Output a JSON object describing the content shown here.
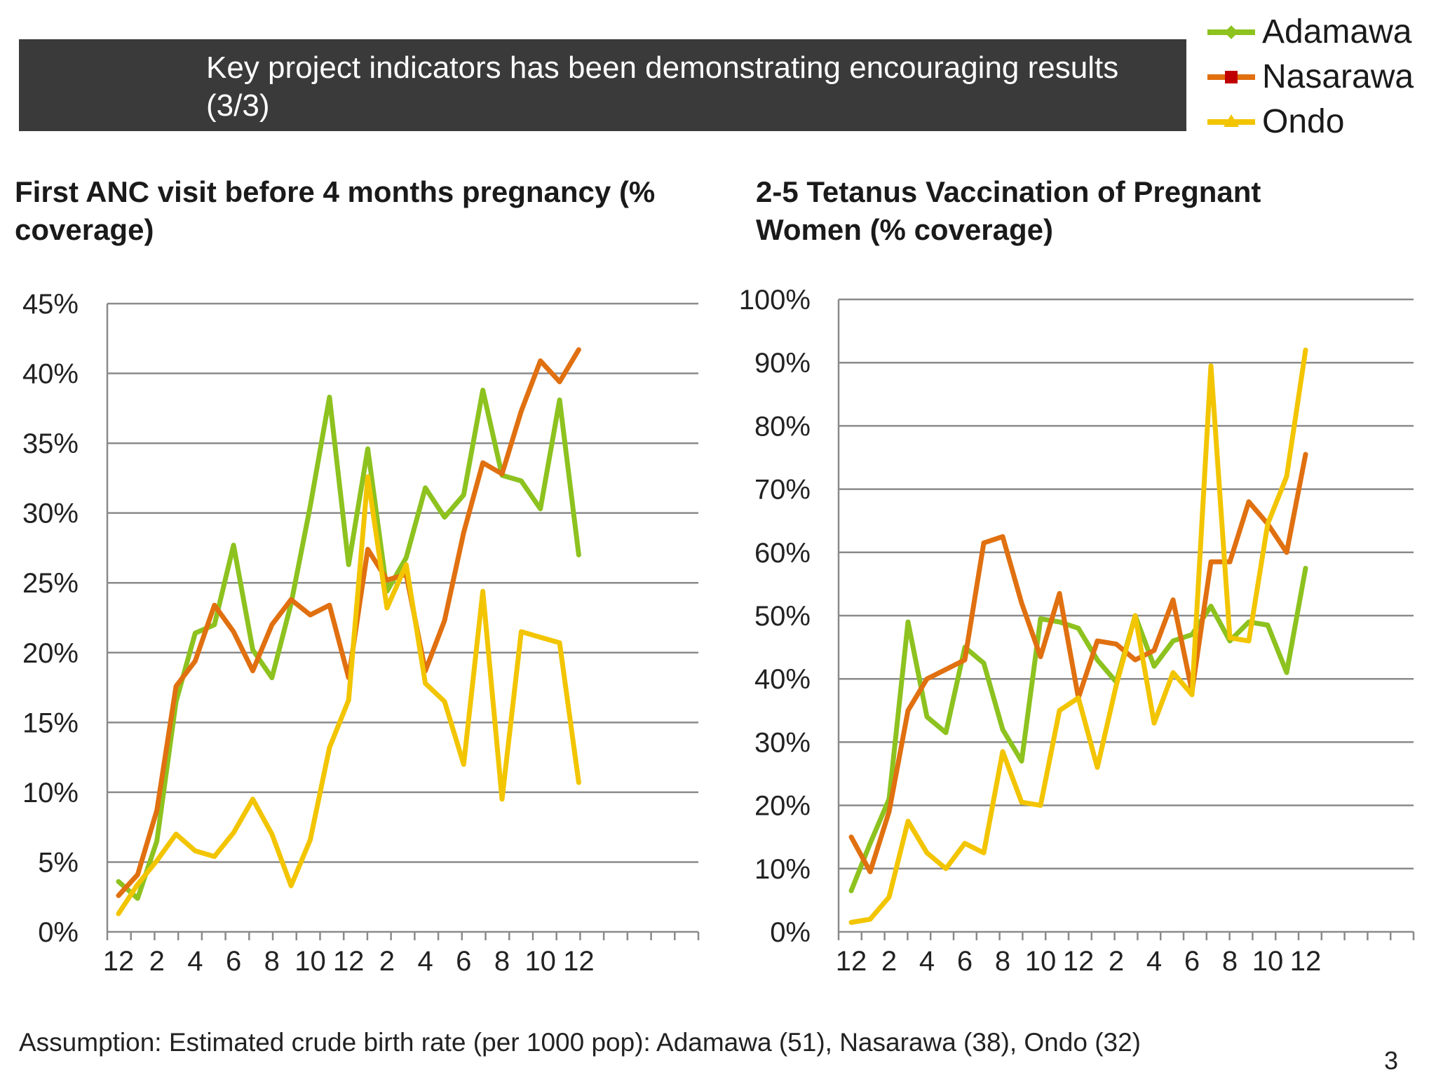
{
  "header": {
    "title": "Key project indicators has been demonstrating encouraging results (3/3)"
  },
  "legend": [
    {
      "label": "Adamawa",
      "color": "#8dc21f",
      "marker": "diamond"
    },
    {
      "label": "Nasarawa",
      "color": "#e07010",
      "marker": "square"
    },
    {
      "label": "Ondo",
      "color": "#f2c500",
      "marker": "triangle"
    }
  ],
  "chart_data": [
    {
      "type": "line",
      "title": "First ANC visit before 4 months pregnancy (% coverage)",
      "xlabel": "",
      "ylabel": "",
      "ylim": [
        0,
        45
      ],
      "yticks": [
        "0%",
        "5%",
        "10%",
        "15%",
        "20%",
        "25%",
        "30%",
        "35%",
        "40%",
        "45%"
      ],
      "xticks": [
        "12",
        "2",
        "4",
        "6",
        "8",
        "10",
        "12",
        "2",
        "4",
        "6",
        "8",
        "10",
        "12"
      ],
      "grid": true,
      "series": [
        {
          "name": "Adamawa",
          "color": "#8dc21f",
          "values": [
            3.6,
            2.4,
            6.5,
            16.5,
            21.4,
            22.0,
            27.7,
            20.2,
            18.2,
            23.5,
            30.5,
            38.3,
            26.3,
            34.6,
            24.4,
            26.8,
            31.8,
            29.7,
            31.3,
            38.8,
            32.7,
            32.3,
            30.3,
            38.1,
            27.0
          ]
        },
        {
          "name": "Nasarawa",
          "color": "#e07010",
          "values": [
            2.6,
            4.1,
            8.7,
            17.6,
            19.4,
            23.4,
            21.5,
            18.7,
            22.0,
            23.8,
            22.7,
            23.4,
            18.2,
            27.4,
            25.2,
            25.6,
            18.7,
            22.3,
            28.6,
            33.6,
            32.8,
            37.3,
            40.9,
            39.4,
            41.7
          ]
        },
        {
          "name": "Ondo",
          "color": "#f2c500",
          "values": [
            1.3,
            3.4,
            5.1,
            7.0,
            5.8,
            5.4,
            7.1,
            9.5,
            7.0,
            3.3,
            6.6,
            13.2,
            16.6,
            32.6,
            23.2,
            26.3,
            17.8,
            16.5,
            12.0,
            24.4,
            9.5,
            21.5,
            21.1,
            20.7,
            10.7
          ]
        }
      ]
    },
    {
      "type": "line",
      "title": "2-5 Tetanus Vaccination of Pregnant Women (% coverage)",
      "xlabel": "",
      "ylabel": "",
      "ylim": [
        0,
        100
      ],
      "yticks": [
        "0%",
        "10%",
        "20%",
        "30%",
        "40%",
        "50%",
        "60%",
        "70%",
        "80%",
        "90%",
        "100%"
      ],
      "xticks": [
        "12",
        "2",
        "4",
        "6",
        "8",
        "10",
        "12",
        "2",
        "4",
        "6",
        "8",
        "10",
        "12"
      ],
      "grid": true,
      "series": [
        {
          "name": "Adamawa",
          "color": "#8dc21f",
          "values": [
            6.5,
            14.0,
            21.0,
            49.0,
            34.0,
            31.5,
            45.0,
            42.5,
            32.0,
            27.0,
            49.5,
            49.0,
            48.0,
            43.0,
            39.5,
            50.0,
            42.0,
            46.0,
            47.0,
            51.5,
            46.0,
            49.0,
            48.5,
            41.0,
            57.5
          ]
        },
        {
          "name": "Nasarawa",
          "color": "#e07010",
          "values": [
            15.0,
            9.5,
            19.0,
            35.0,
            40.0,
            41.5,
            43.0,
            61.5,
            62.5,
            52.0,
            43.5,
            53.5,
            37.0,
            46.0,
            45.5,
            43.0,
            44.5,
            52.5,
            38.0,
            58.5,
            58.5,
            68.0,
            64.5,
            60.0,
            75.5
          ]
        },
        {
          "name": "Ondo",
          "color": "#f2c500",
          "values": [
            1.5,
            2.0,
            5.5,
            17.5,
            12.5,
            10.0,
            14.0,
            12.5,
            28.5,
            20.5,
            20.0,
            35.0,
            37.0,
            26.0,
            39.0,
            50.0,
            33.0,
            41.0,
            37.5,
            89.5,
            46.5,
            46.0,
            64.5,
            72.0,
            92.0
          ]
        }
      ]
    }
  ],
  "footnote": "Assumption: Estimated crude birth rate (per 1000 pop): Adamawa (51), Nasarawa (38), Ondo (32)",
  "page_number": "3"
}
